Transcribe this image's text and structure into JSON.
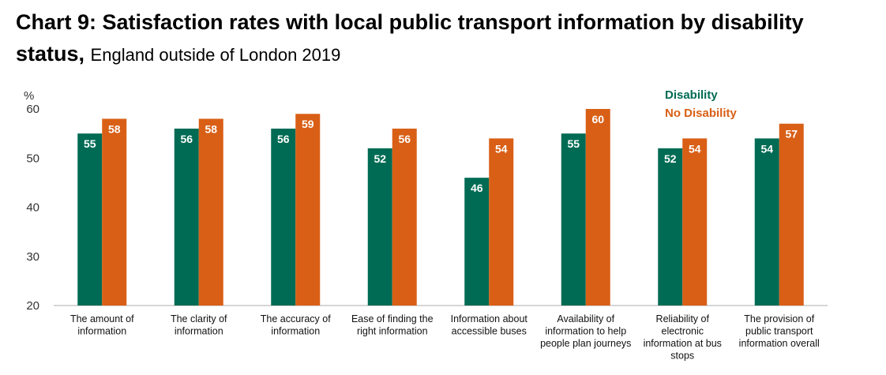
{
  "title": {
    "bold_1": "Chart 9: Satisfaction rates with local public transport information by disability",
    "bold_2": "status,",
    "subtitle": "England outside of London 2019"
  },
  "colors": {
    "disability": "#006b54",
    "no_disability": "#d95f16",
    "axis": "#c8c8c8"
  },
  "chart_data": {
    "type": "bar",
    "title": "Chart 9: Satisfaction rates with local public transport information by disability status, England outside of London 2019",
    "ylabel": "%",
    "ylim": [
      20,
      60
    ],
    "yticks": [
      20,
      30,
      40,
      50,
      60
    ],
    "grid": false,
    "legend_position": "top-right",
    "categories": [
      [
        "The amount of",
        "information"
      ],
      [
        "The clarity of",
        "information"
      ],
      [
        "The accuracy of",
        "information"
      ],
      [
        "Ease of finding the",
        "right information"
      ],
      [
        "Information about",
        "accessible buses"
      ],
      [
        "Availability of",
        "information to help",
        "people plan journeys"
      ],
      [
        "Reliability of",
        "electronic",
        "information at bus",
        "stops"
      ],
      [
        "The provision of",
        "public transport",
        "information overall"
      ]
    ],
    "series": [
      {
        "name": "Disability",
        "color": "#006b54",
        "values": [
          55,
          56,
          56,
          52,
          46,
          55,
          52,
          54
        ]
      },
      {
        "name": "No Disability",
        "color": "#d95f16",
        "values": [
          58,
          58,
          59,
          56,
          54,
          60,
          54,
          57
        ]
      }
    ]
  }
}
